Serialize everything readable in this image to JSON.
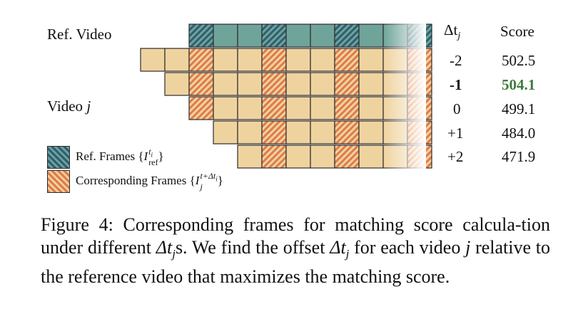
{
  "figure": {
    "ref_label": "Ref. Video",
    "video_label_prefix": "Video ",
    "video_label_var": "j",
    "col_dt_symbol": "Δt",
    "col_dt_sub": "j",
    "col_score": "Score",
    "rows": [
      {
        "dt": "-2",
        "score": "502.5",
        "best": false
      },
      {
        "dt": "-1",
        "score": "504.1",
        "best": true
      },
      {
        "dt": "0",
        "score": "499.1",
        "best": false
      },
      {
        "dt": "+1",
        "score": "484.0",
        "best": false
      },
      {
        "dt": "+2",
        "score": "471.9",
        "best": false
      }
    ],
    "legend": {
      "ref_frames_text": "Ref. Frames {",
      "ref_frames_I": "I",
      "ref_frames_sup": "t",
      "ref_frames_sup_sub": "i",
      "ref_frames_sub": "ref",
      "ref_frames_close": "}",
      "corr_frames_text": "Corresponding Frames {",
      "corr_frames_I": "I",
      "corr_frames_sup": "t+Δt",
      "corr_frames_sup_sub": "i",
      "corr_frames_sub": "j",
      "corr_frames_close": "}"
    },
    "colors": {
      "ref_frame": "#6fa49a",
      "ref_hatch": "#2f5e73",
      "corr_frame": "#efd39f",
      "corr_hatch": "#e07a4a",
      "best_score": "#3f7a3f"
    }
  },
  "caption": {
    "part1": "Figure 4: Corresponding frames for matching score calcula-tion under different ",
    "dt1": "Δt",
    "dt1_sub": "j",
    "part2": "s. We find the offset ",
    "dt2": "Δt",
    "dt2_sub": "j",
    "part3": " for each video ",
    "var_j": "j",
    "part4": " relative to the reference video that maximizes the matching score."
  }
}
